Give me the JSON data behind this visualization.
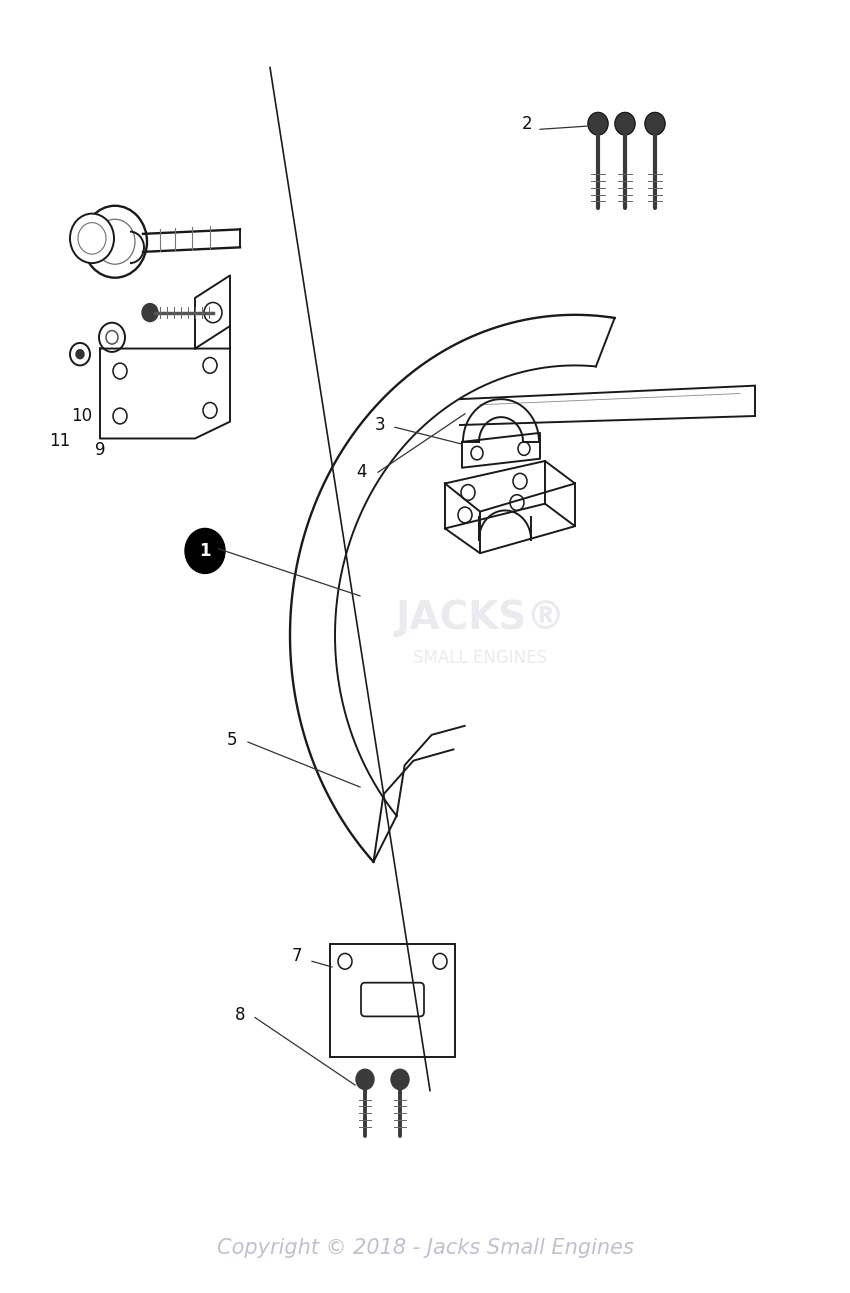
{
  "background_color": "#ffffff",
  "copyright_text": "Copyright © 2018 - Jacks Small Engines",
  "copyright_color": "#c0c0d0",
  "copyright_fontsize": 15,
  "line_color": "#1a1a1a",
  "line_width": 1.4,
  "callout_lw": 0.9,
  "label_fontsize": 12
}
